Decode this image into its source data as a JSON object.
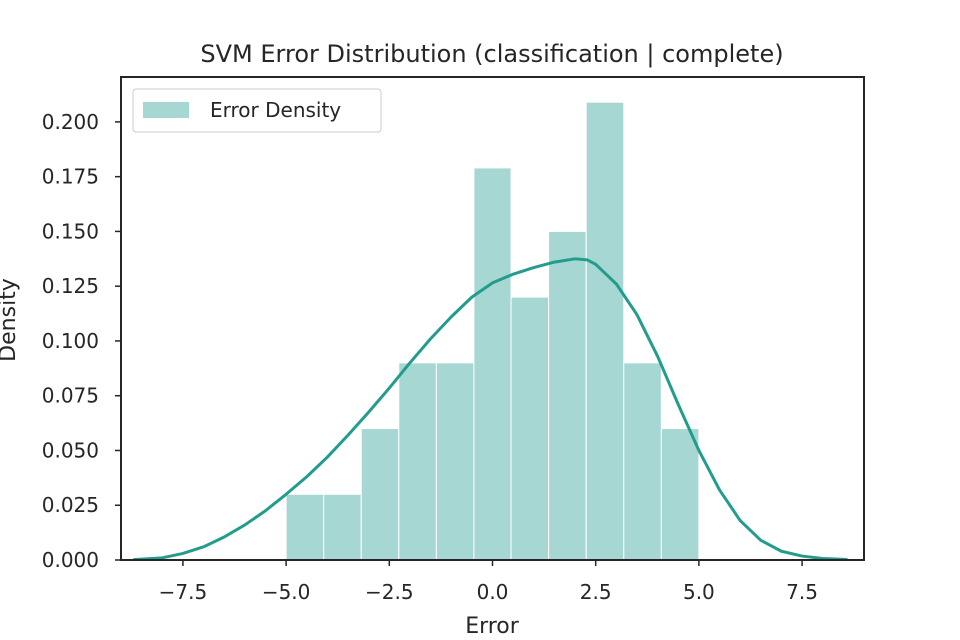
{
  "chart_data": {
    "type": "bar",
    "title": "SVM Error Distribution (classification | complete)",
    "xlabel": "Error",
    "ylabel": "Density",
    "xlim": [
      -9.0,
      9.0
    ],
    "ylim": [
      0.0,
      0.2205
    ],
    "xticks": [
      -7.5,
      -5.0,
      -2.5,
      0.0,
      2.5,
      5.0,
      7.5
    ],
    "xtick_labels": [
      "−7.5",
      "−5.0",
      "−2.5",
      "0.0",
      "2.5",
      "5.0",
      "7.5"
    ],
    "yticks": [
      0.0,
      0.025,
      0.05,
      0.075,
      0.1,
      0.125,
      0.15,
      0.175,
      0.2
    ],
    "ytick_labels": [
      "0.000",
      "0.025",
      "0.050",
      "0.075",
      "0.100",
      "0.125",
      "0.150",
      "0.175",
      "0.200"
    ],
    "grid": false,
    "legend_position": "top-left",
    "series": [
      {
        "name": "Error Density",
        "kind": "histogram",
        "color": "#a6d7d2",
        "bin_edges": [
          -5.0,
          -4.09,
          -3.18,
          -2.27,
          -1.36,
          -0.45,
          0.45,
          1.36,
          2.27,
          3.18,
          4.09,
          5.0
        ],
        "values": [
          0.03,
          0.03,
          0.06,
          0.09,
          0.09,
          0.179,
          0.12,
          0.15,
          0.209,
          0.09,
          0.06
        ]
      },
      {
        "kind": "kde",
        "color": "#239c8d",
        "x": [
          -8.7,
          -8.0,
          -7.5,
          -7.0,
          -6.5,
          -6.0,
          -5.5,
          -5.0,
          -4.5,
          -4.0,
          -3.5,
          -3.0,
          -2.5,
          -2.0,
          -1.5,
          -1.0,
          -0.5,
          0.0,
          0.5,
          1.0,
          1.5,
          2.0,
          2.3,
          2.5,
          3.0,
          3.5,
          4.0,
          4.5,
          5.0,
          5.5,
          6.0,
          6.5,
          7.0,
          7.5,
          8.0,
          8.6
        ],
        "y": [
          0.0002,
          0.001,
          0.003,
          0.006,
          0.0105,
          0.016,
          0.0225,
          0.03,
          0.038,
          0.047,
          0.057,
          0.0675,
          0.0785,
          0.09,
          0.101,
          0.111,
          0.12,
          0.1265,
          0.1305,
          0.1335,
          0.136,
          0.1375,
          0.137,
          0.135,
          0.126,
          0.112,
          0.093,
          0.071,
          0.05,
          0.032,
          0.018,
          0.009,
          0.004,
          0.0018,
          0.0007,
          0.0002
        ]
      }
    ]
  }
}
